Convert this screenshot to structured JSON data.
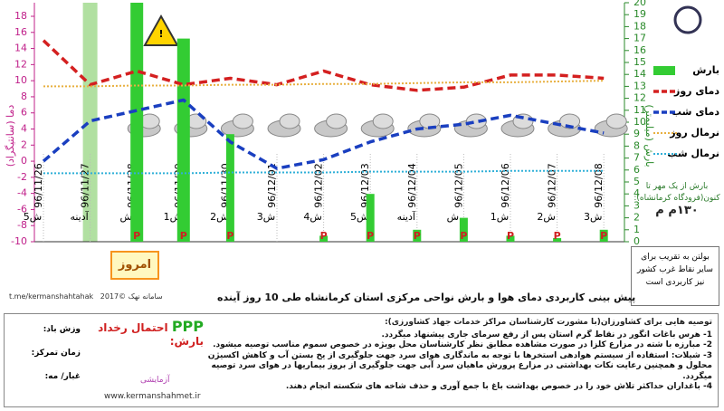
{
  "chart_data": {
    "type": "line",
    "title": "پیش بینی کاربردی دمای هوا و بارش نواحی مرکزی استان کرمانشاه طی 10 روز آینده",
    "source": "سامانه نهک ©2017",
    "telegram": "t.me/kermanshahtahak",
    "today_label": "امروز",
    "y_label": "دما (سانتیگراد)",
    "y2_label": "بارش (میلیمتر)",
    "precip_symbol": "P",
    "rain_total_label": "بارش از یک مهر تا کنون(فرودگاه کرمانشاه):",
    "rain_total": "۱۳۰م م",
    "note": "بولتن به تقریب برای سایر نقاط غرب کشور نیز کاربردی است",
    "categories": [
      "96/11/26",
      "96/11/27",
      "96/11/28",
      "96/11/29",
      "96/11/30",
      "96/12/01",
      "96/12/02",
      "96/12/03",
      "96/12/04",
      "96/12/05",
      "96/12/06",
      "96/12/07",
      "96/12/08"
    ],
    "day_labels": [
      "5ش",
      "آدینه",
      "ش",
      "1ش",
      "2ش",
      "3ش",
      "4ش",
      "5ش",
      "آدینه",
      "ش",
      "1ش",
      "2ش",
      "3ش"
    ],
    "ylim": [
      -10,
      18
    ],
    "yticks": [
      -10,
      -8,
      -6,
      -4,
      -2,
      0,
      2,
      4,
      6,
      8,
      10,
      12,
      14,
      16,
      18
    ],
    "y2lim": [
      0,
      20
    ],
    "y2ticks": [
      0,
      1,
      2,
      3,
      4,
      5,
      6,
      7,
      8,
      9,
      10,
      11,
      12,
      13,
      14,
      15,
      16,
      17,
      18,
      19,
      20
    ],
    "series": [
      {
        "name": "بارش",
        "color": "#33cc33",
        "type": "bar",
        "axis": "y2",
        "values": [
          null,
          null,
          20,
          17,
          9,
          null,
          0.5,
          4,
          1,
          2,
          0.5,
          0.3,
          1
        ]
      },
      {
        "name": "دمای روز",
        "color": "#d42020",
        "style": "dashed",
        "values": [
          15,
          9.5,
          11.2,
          9.5,
          10.3,
          9.5,
          11.2,
          9.5,
          8.8,
          9.2,
          10.7,
          10.7,
          10.3
        ]
      },
      {
        "name": "دمای شب",
        "color": "#1a3fc0",
        "style": "dashed",
        "values": [
          0,
          5,
          6.3,
          7.6,
          2.4,
          -0.9,
          0.2,
          2.4,
          4,
          4.6,
          5.7,
          4.6,
          3.5
        ]
      },
      {
        "name": "نرمال روز",
        "color": "#e8b040",
        "style": "dotted",
        "values": [
          9.3,
          9.3,
          9.4,
          9.4,
          9.5,
          9.5,
          9.6,
          9.6,
          9.7,
          9.8,
          9.8,
          9.9,
          10
        ]
      },
      {
        "name": "نرمال شب",
        "color": "#30b0d8",
        "style": "dotted",
        "values": [
          -1.5,
          -1.5,
          -1.5,
          -1.5,
          -1.4,
          -1.4,
          -1.4,
          -1.3,
          -1.3,
          -1.3,
          -1.2,
          -1.2,
          -1.2
        ]
      }
    ]
  },
  "advice": {
    "heading": "توصیه هایی برای کشاورزان(با مشورت کارشناسان مراکز خدمات جهاد کشاورزی):",
    "items": [
      "1- هرس باغات انگور در نقاط گرم استان پس از رفع سرمای جاری پیشنهاد میگردد.",
      "2- مبارزه با شته در مزارع کلزا در صورت مشاهده مطابق نظر کارشناسان محل بویژه در خصوص سموم مناسب توصیه میشود.",
      "3- شیلات: استفاده از سیستم هوادهی استخرها با توجه به ماندگاری هوای سرد جهت جلوگیری از یخ بستن آب و کاهش اکسیژن محلول و همچنین رعایت نکات بهداشتی در مزارع پرورش ماهیان سرد آبی جهت جلوگیری از بروز بیماریها در هوای سرد توصیه میگردد.",
      "4- باغداران حداکثر تلاش خود را در خصوص بهداشت باغ با جمع آوری و حذف شاخه های شکسته انجام دهند."
    ],
    "precip_probability": "احتمال رخداد بارش:",
    "precip_symbols": "PPP",
    "legend": [
      "وزش باد:",
      "زمان تمرکز:",
      "غبار/ مه:"
    ],
    "trial": "آزمایشی",
    "website": "www.kermanshahmet.ir"
  }
}
